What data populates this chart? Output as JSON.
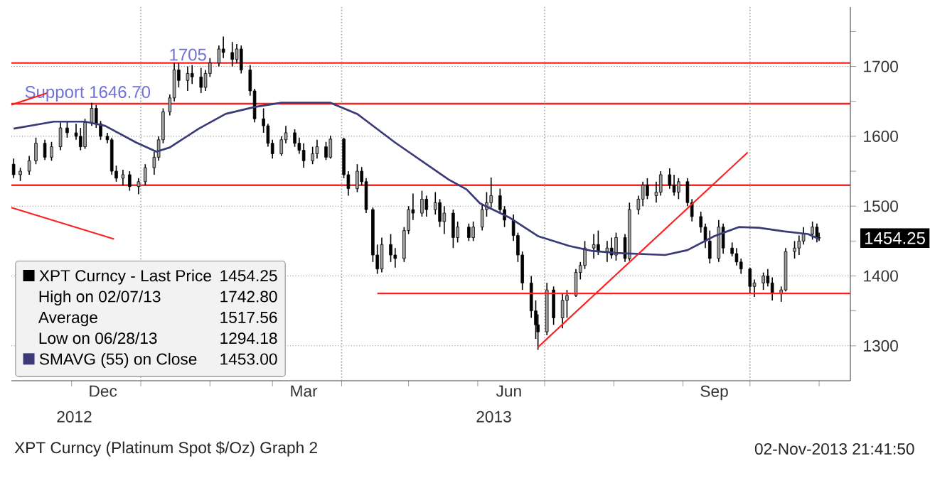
{
  "chart_data": {
    "type": "candlestick",
    "xlim": [
      "2012-11-04",
      "2013-11-15"
    ],
    "ylim": [
      1250,
      1785
    ],
    "xticks": [
      {
        "value": "2012-12-01",
        "label": null
      },
      {
        "value": "2013-01-01",
        "label": null
      },
      {
        "value": "2013-02-01",
        "label": null
      },
      {
        "value": "2013-03-01",
        "label": null
      },
      {
        "value": "2013-04-01",
        "label": null
      },
      {
        "value": "2013-05-01",
        "label": null
      },
      {
        "value": "2013-06-01",
        "label": null
      },
      {
        "value": "2013-07-01",
        "label": null
      },
      {
        "value": "2013-08-01",
        "label": null
      },
      {
        "value": "2013-09-01",
        "label": null
      },
      {
        "value": "2013-10-01",
        "label": null
      },
      {
        "value": "2013-11-01",
        "label": null
      },
      {
        "value": "2012-12-15",
        "label": "Dec"
      },
      {
        "value": "2013-03-15",
        "label": "Mar"
      },
      {
        "value": "2013-06-15",
        "label": "Jun"
      },
      {
        "value": "2013-09-15",
        "label": "Sep"
      }
    ],
    "yticks": [
      1300,
      1400,
      1500,
      1600,
      1700,
      {
        "value": 1350,
        "label": null
      },
      {
        "value": 1450,
        "label": null
      },
      {
        "value": 1550,
        "label": null
      },
      {
        "value": 1650,
        "label": null
      },
      {
        "value": 1750,
        "label": null
      }
    ],
    "grid": "y",
    "legend": "bottom left",
    "series": [
      {
        "name": "XPT Curncy - Last Price",
        "color": "#000000",
        "x": [
          "2012-11-05",
          "2012-11-08",
          "2012-11-12",
          "2012-11-15",
          "2012-11-19",
          "2012-11-22",
          "2012-11-26",
          "2012-11-29",
          "2012-12-03",
          "2012-12-05",
          "2012-12-07",
          "2012-12-10",
          "2012-12-12",
          "2012-12-14",
          "2012-12-17",
          "2012-12-19",
          "2012-12-21",
          "2012-12-24",
          "2012-12-27",
          "2012-12-31",
          "2013-01-03",
          "2013-01-07",
          "2013-01-09",
          "2013-01-11",
          "2013-01-14",
          "2013-01-16",
          "2013-01-18",
          "2013-01-22",
          "2013-01-24",
          "2013-01-28",
          "2013-01-30",
          "2013-02-01",
          "2013-02-05",
          "2013-02-07",
          "2013-02-11",
          "2013-02-13",
          "2013-02-15",
          "2013-02-19",
          "2013-02-21",
          "2013-02-25",
          "2013-02-27",
          "2013-03-01",
          "2013-03-05",
          "2013-03-07",
          "2013-03-11",
          "2013-03-13",
          "2013-03-15",
          "2013-03-19",
          "2013-03-21",
          "2013-03-25",
          "2013-03-27",
          "2013-04-02",
          "2013-04-04",
          "2013-04-08",
          "2013-04-10",
          "2013-04-12",
          "2013-04-15",
          "2013-04-17",
          "2013-04-19",
          "2013-04-23",
          "2013-04-25",
          "2013-04-29",
          "2013-05-01",
          "2013-05-03",
          "2013-05-07",
          "2013-05-09",
          "2013-05-13",
          "2013-05-15",
          "2013-05-17",
          "2013-05-21",
          "2013-05-23",
          "2013-05-28",
          "2013-05-30",
          "2013-06-03",
          "2013-06-05",
          "2013-06-07",
          "2013-06-11",
          "2013-06-13",
          "2013-06-17",
          "2013-06-19",
          "2013-06-21",
          "2013-06-25",
          "2013-06-27",
          "2013-06-28",
          "2013-07-02",
          "2013-07-05",
          "2013-07-09",
          "2013-07-11",
          "2013-07-15",
          "2013-07-17",
          "2013-07-19",
          "2013-07-23",
          "2013-07-25",
          "2013-07-29",
          "2013-07-31",
          "2013-08-02",
          "2013-08-06",
          "2013-08-08",
          "2013-08-12",
          "2013-08-14",
          "2013-08-16",
          "2013-08-20",
          "2013-08-22",
          "2013-08-26",
          "2013-08-28",
          "2013-08-30",
          "2013-09-03",
          "2013-09-05",
          "2013-09-09",
          "2013-09-11",
          "2013-09-13",
          "2013-09-17",
          "2013-09-19",
          "2013-09-23",
          "2013-09-25",
          "2013-09-27",
          "2013-10-01",
          "2013-10-03",
          "2013-10-07",
          "2013-10-09",
          "2013-10-11",
          "2013-10-15",
          "2013-10-17",
          "2013-10-21",
          "2013-10-23",
          "2013-10-25",
          "2013-10-29",
          "2013-10-31",
          "2013-11-01"
        ],
        "ohlc": [
          [
            1560,
            1568,
            1540,
            1545
          ],
          [
            1545,
            1555,
            1536,
            1550
          ],
          [
            1550,
            1572,
            1545,
            1565
          ],
          [
            1565,
            1598,
            1560,
            1590
          ],
          [
            1590,
            1595,
            1566,
            1570
          ],
          [
            1570,
            1592,
            1565,
            1585
          ],
          [
            1585,
            1620,
            1580,
            1612
          ],
          [
            1612,
            1622,
            1598,
            1605
          ],
          [
            1605,
            1618,
            1595,
            1600
          ],
          [
            1600,
            1612,
            1580,
            1585
          ],
          [
            1585,
            1625,
            1582,
            1620
          ],
          [
            1620,
            1648,
            1615,
            1640
          ],
          [
            1640,
            1645,
            1612,
            1618
          ],
          [
            1618,
            1622,
            1595,
            1600
          ],
          [
            1600,
            1605,
            1590,
            1595
          ],
          [
            1595,
            1598,
            1545,
            1550
          ],
          [
            1550,
            1558,
            1535,
            1540
          ],
          [
            1540,
            1552,
            1530,
            1545
          ],
          [
            1545,
            1550,
            1522,
            1528
          ],
          [
            1528,
            1540,
            1517,
            1535
          ],
          [
            1535,
            1560,
            1530,
            1555
          ],
          [
            1555,
            1578,
            1545,
            1570
          ],
          [
            1570,
            1600,
            1565,
            1595
          ],
          [
            1595,
            1640,
            1590,
            1635
          ],
          [
            1635,
            1660,
            1630,
            1655
          ],
          [
            1655,
            1705,
            1650,
            1695
          ],
          [
            1695,
            1705,
            1670,
            1680
          ],
          [
            1680,
            1700,
            1665,
            1690
          ],
          [
            1690,
            1702,
            1675,
            1685
          ],
          [
            1685,
            1698,
            1662,
            1670
          ],
          [
            1670,
            1695,
            1665,
            1690
          ],
          [
            1690,
            1712,
            1685,
            1705
          ],
          [
            1705,
            1730,
            1700,
            1725
          ],
          [
            1725,
            1742.8,
            1712,
            1720
          ],
          [
            1720,
            1735,
            1700,
            1710
          ],
          [
            1710,
            1732,
            1705,
            1725
          ],
          [
            1725,
            1730,
            1690,
            1695
          ],
          [
            1695,
            1702,
            1658,
            1665
          ],
          [
            1665,
            1668,
            1620,
            1625
          ],
          [
            1625,
            1640,
            1605,
            1615
          ],
          [
            1615,
            1618,
            1585,
            1590
          ],
          [
            1590,
            1595,
            1568,
            1575
          ],
          [
            1575,
            1600,
            1572,
            1595
          ],
          [
            1595,
            1615,
            1590,
            1605
          ],
          [
            1605,
            1610,
            1585,
            1590
          ],
          [
            1590,
            1598,
            1575,
            1580
          ],
          [
            1580,
            1590,
            1555,
            1565
          ],
          [
            1565,
            1585,
            1560,
            1575
          ],
          [
            1575,
            1595,
            1568,
            1585
          ],
          [
            1585,
            1592,
            1566,
            1570
          ],
          [
            1570,
            1601,
            1568,
            1596
          ],
          [
            1596,
            1598,
            1540,
            1545
          ],
          [
            1545,
            1550,
            1515,
            1525
          ],
          [
            1525,
            1560,
            1520,
            1550
          ],
          [
            1550,
            1556,
            1530,
            1535
          ],
          [
            1535,
            1540,
            1490,
            1495
          ],
          [
            1495,
            1498,
            1420,
            1430
          ],
          [
            1430,
            1445,
            1403,
            1410
          ],
          [
            1410,
            1455,
            1405,
            1445
          ],
          [
            1445,
            1460,
            1420,
            1430
          ],
          [
            1430,
            1440,
            1412,
            1425
          ],
          [
            1425,
            1470,
            1420,
            1465
          ],
          [
            1465,
            1500,
            1460,
            1495
          ],
          [
            1495,
            1518,
            1480,
            1490
          ],
          [
            1490,
            1522,
            1485,
            1510
          ],
          [
            1510,
            1515,
            1485,
            1495
          ],
          [
            1495,
            1520,
            1488,
            1505
          ],
          [
            1505,
            1510,
            1470,
            1478
          ],
          [
            1478,
            1500,
            1460,
            1490
          ],
          [
            1490,
            1495,
            1440,
            1455
          ],
          [
            1455,
            1478,
            1448,
            1470
          ],
          [
            1470,
            1475,
            1450,
            1455
          ],
          [
            1455,
            1478,
            1450,
            1470
          ],
          [
            1470,
            1502,
            1465,
            1495
          ],
          [
            1495,
            1520,
            1485,
            1505
          ],
          [
            1505,
            1541,
            1498,
            1515
          ],
          [
            1515,
            1525,
            1490,
            1495
          ],
          [
            1495,
            1500,
            1470,
            1480
          ],
          [
            1480,
            1488,
            1450,
            1458
          ],
          [
            1458,
            1462,
            1420,
            1430
          ],
          [
            1430,
            1435,
            1380,
            1390
          ],
          [
            1390,
            1400,
            1340,
            1350
          ],
          [
            1350,
            1365,
            1310,
            1330
          ],
          [
            1330,
            1345,
            1294.18,
            1320
          ],
          [
            1320,
            1390,
            1315,
            1380
          ],
          [
            1380,
            1385,
            1330,
            1340
          ],
          [
            1340,
            1375,
            1325,
            1365
          ],
          [
            1365,
            1380,
            1340,
            1372
          ],
          [
            1372,
            1410,
            1370,
            1405
          ],
          [
            1405,
            1420,
            1395,
            1415
          ],
          [
            1415,
            1450,
            1410,
            1440
          ],
          [
            1440,
            1460,
            1425,
            1445
          ],
          [
            1445,
            1465,
            1430,
            1435
          ],
          [
            1435,
            1450,
            1420,
            1440
          ],
          [
            1440,
            1455,
            1425,
            1430
          ],
          [
            1430,
            1462,
            1422,
            1455
          ],
          [
            1455,
            1460,
            1420,
            1425
          ],
          [
            1425,
            1505,
            1422,
            1495
          ],
          [
            1495,
            1515,
            1488,
            1510
          ],
          [
            1510,
            1535,
            1500,
            1530
          ],
          [
            1530,
            1540,
            1510,
            1515
          ],
          [
            1515,
            1535,
            1505,
            1520
          ],
          [
            1520,
            1550,
            1515,
            1545
          ],
          [
            1545,
            1554,
            1525,
            1530
          ],
          [
            1530,
            1545,
            1515,
            1520
          ],
          [
            1520,
            1540,
            1510,
            1535
          ],
          [
            1535,
            1540,
            1500,
            1505
          ],
          [
            1505,
            1510,
            1478,
            1485
          ],
          [
            1485,
            1492,
            1462,
            1470
          ],
          [
            1470,
            1475,
            1440,
            1450
          ],
          [
            1450,
            1465,
            1418,
            1425
          ],
          [
            1425,
            1480,
            1420,
            1470
          ],
          [
            1470,
            1475,
            1432,
            1440
          ],
          [
            1440,
            1448,
            1428,
            1432
          ],
          [
            1432,
            1440,
            1415,
            1420
          ],
          [
            1420,
            1425,
            1403,
            1410
          ],
          [
            1410,
            1412,
            1375,
            1385
          ],
          [
            1385,
            1395,
            1370,
            1390
          ],
          [
            1390,
            1405,
            1380,
            1400
          ],
          [
            1400,
            1410,
            1385,
            1390
          ],
          [
            1390,
            1398,
            1365,
            1375
          ],
          [
            1375,
            1385,
            1363,
            1380
          ],
          [
            1380,
            1440,
            1378,
            1435
          ],
          [
            1435,
            1450,
            1425,
            1440
          ],
          [
            1440,
            1458,
            1430,
            1450
          ],
          [
            1450,
            1470,
            1445,
            1460
          ],
          [
            1460,
            1478,
            1452,
            1470
          ],
          [
            1470,
            1475,
            1448,
            1455
          ],
          [
            1455,
            1462,
            1450,
            1454.25
          ]
        ]
      },
      {
        "name": "SMAVG (55) on Close",
        "type": "line",
        "color": "#3a3a78",
        "x": [
          "2012-11-05",
          "2012-11-23",
          "2012-12-07",
          "2012-12-16",
          "2012-12-30",
          "2013-01-08",
          "2013-01-14",
          "2013-01-27",
          "2013-02-08",
          "2013-02-21",
          "2013-03-05",
          "2013-03-27",
          "2013-04-08",
          "2013-04-25",
          "2013-05-19",
          "2013-05-27",
          "2013-06-02",
          "2013-06-15",
          "2013-06-28",
          "2013-07-12",
          "2013-07-22",
          "2013-08-02",
          "2013-08-24",
          "2013-09-03",
          "2013-09-15",
          "2013-09-26",
          "2013-10-05",
          "2013-10-16",
          "2013-10-27",
          "2013-11-01"
        ],
        "values": [
          1611,
          1621,
          1621,
          1615,
          1591,
          1578,
          1584,
          1611,
          1632,
          1642,
          1648,
          1648,
          1632,
          1591,
          1538,
          1524,
          1504,
          1484,
          1457,
          1443,
          1436,
          1433,
          1430,
          1437,
          1457,
          1470,
          1469,
          1464,
          1460,
          1453
        ]
      },
      {
        "type": "line",
        "color": "#ff2020",
        "x": [
          "2013-04-17",
          "2013-11-15"
        ],
        "values": [
          1375,
          1375
        ]
      },
      {
        "type": "line",
        "color": "#ff2020",
        "x": [
          "2013-06-28",
          "2013-09-30"
        ],
        "values": [
          1298,
          1577
        ]
      },
      {
        "type": "line",
        "color": "#ff2020",
        "x": [
          "2012-11-04",
          "2012-12-20"
        ],
        "values": [
          1498,
          1453
        ]
      },
      {
        "type": "line",
        "color": "#ff2020",
        "x": [
          "2012-11-04",
          "2012-11-20"
        ],
        "values": [
          1645,
          1662
        ]
      }
    ],
    "ref_lines": [
      {
        "axis": "y",
        "value": 1705,
        "label": "1705",
        "color": "#ff2020"
      },
      {
        "axis": "y",
        "value": 1646.7,
        "label": "Support 1646.70",
        "color": "#ff2020"
      },
      {
        "axis": "y",
        "value": 1530,
        "color": "#ff2020"
      },
      {
        "axis": "x",
        "value": "2013-01-01",
        "color": "#a0a0a0",
        "line_style": "dotted"
      },
      {
        "axis": "x",
        "value": "2013-04-01",
        "color": "#a0a0a0",
        "line_style": "dotted"
      },
      {
        "axis": "x",
        "value": "2013-07-01",
        "color": "#a0a0a0",
        "line_style": "dotted"
      },
      {
        "axis": "x",
        "value": "2013-10-01",
        "color": "#a0a0a0",
        "line_style": "dotted"
      }
    ],
    "annotations": [
      "XPT Curncy (Platinum Spot  $/Oz) Graph 2",
      "02-Nov-2013 21:41:50",
      "2012",
      "2013",
      "1454.25",
      "1454.25",
      "High on 02/07/13",
      "1742.80",
      "Average",
      "1517.56",
      "Low on 06/28/13",
      "1294.18",
      "1453.00"
    ]
  }
}
